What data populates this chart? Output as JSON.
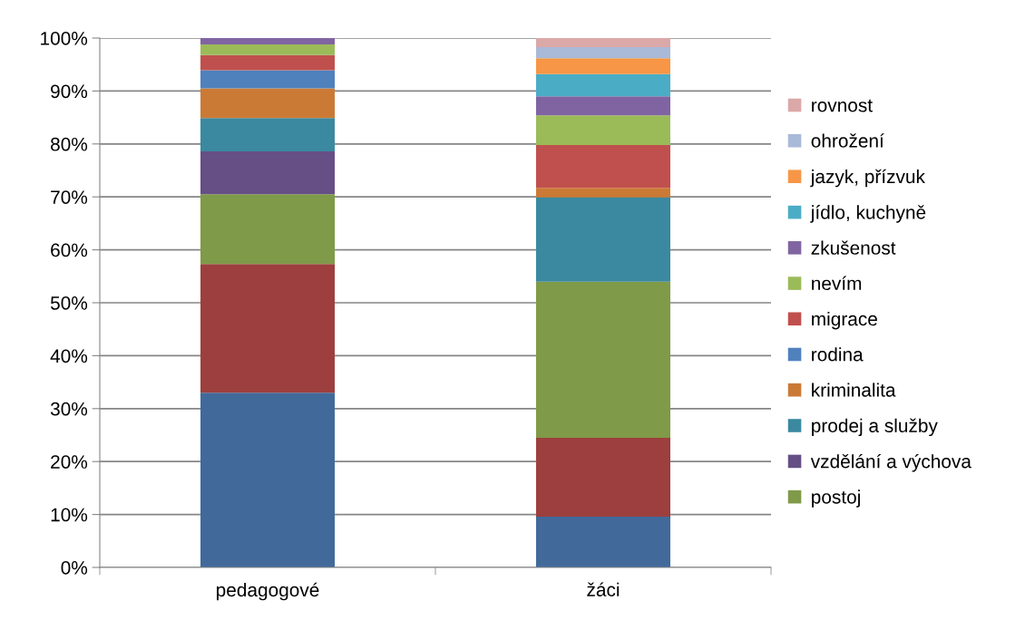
{
  "chart_data": {
    "type": "bar",
    "stacked": true,
    "categories": [
      "pedagogové",
      "žáci"
    ],
    "ylim": [
      0,
      100
    ],
    "yticks": [
      {
        "value": 0,
        "label": "0%"
      },
      {
        "value": 10,
        "label": "10%"
      },
      {
        "value": 20,
        "label": "20%"
      },
      {
        "value": 30,
        "label": "30%"
      },
      {
        "value": 40,
        "label": "40%"
      },
      {
        "value": 50,
        "label": "50%"
      },
      {
        "value": 60,
        "label": "60%"
      },
      {
        "value": 70,
        "label": "70%"
      },
      {
        "value": 80,
        "label": "80%"
      },
      {
        "value": 90,
        "label": "90%"
      },
      {
        "value": 100,
        "label": "100%"
      }
    ],
    "grid": "y",
    "legend": "right",
    "series": [
      {
        "color": "#416a9b",
        "values": [
          33.0,
          9.6
        ]
      },
      {
        "color": "#9d3f3e",
        "values": [
          24.3,
          14.9
        ]
      },
      {
        "name": "postoj",
        "color": "#7f9a48",
        "values": [
          13.2,
          29.5
        ]
      },
      {
        "name": "vzdělání a výchova",
        "color": "#664f85",
        "values": [
          8.1,
          null
        ]
      },
      {
        "name": "prodej a služby",
        "color": "#3a89a0",
        "values": [
          6.3,
          15.9
        ]
      },
      {
        "name": "kriminalita",
        "color": "#cb7a36",
        "values": [
          5.6,
          1.8
        ]
      },
      {
        "name": "rodina",
        "color": "#4f81bd",
        "values": [
          3.4,
          null
        ]
      },
      {
        "name": "migrace",
        "color": "#c0504d",
        "values": [
          2.9,
          8.1
        ]
      },
      {
        "name": "nevím",
        "color": "#9bbb59",
        "values": [
          2.0,
          5.6
        ]
      },
      {
        "name": "zkušenost",
        "color": "#8064a2",
        "values": [
          1.2,
          3.6
        ]
      },
      {
        "name": "jídlo, kuchyně",
        "color": "#4bacc6",
        "values": [
          null,
          4.2
        ]
      },
      {
        "name": "jazyk, přízvuk",
        "color": "#f79646",
        "values": [
          null,
          3.0
        ]
      },
      {
        "name": "ohrožení",
        "color": "#a9b9d8",
        "values": [
          null,
          2.1
        ]
      },
      {
        "name": "rovnost",
        "color": "#dba8a8",
        "values": [
          null,
          1.7
        ]
      }
    ]
  }
}
